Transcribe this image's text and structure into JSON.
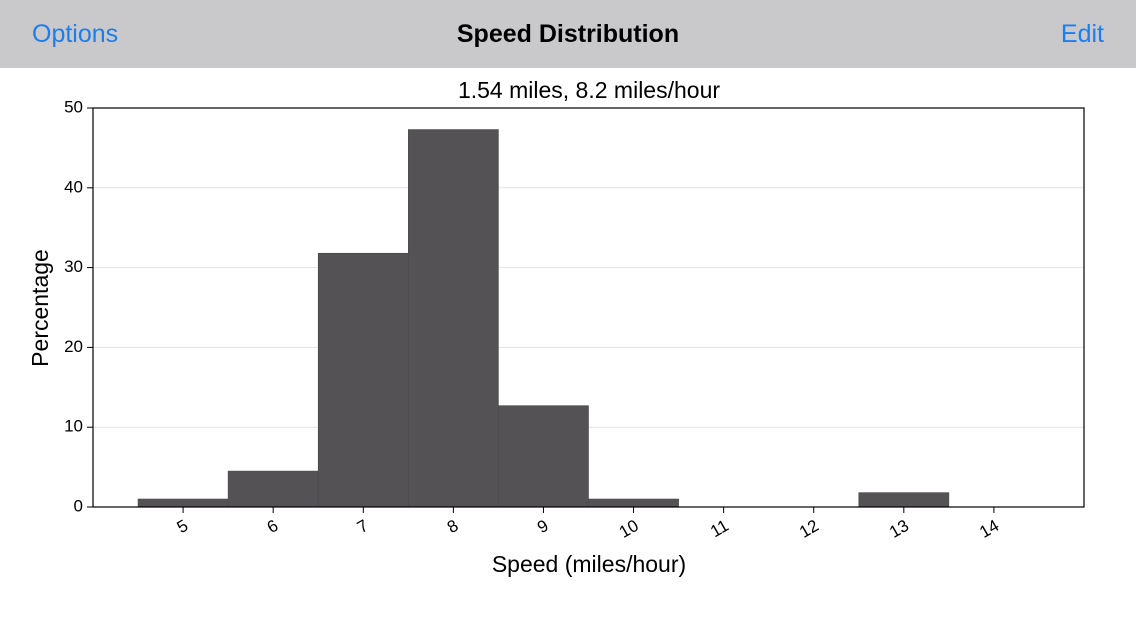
{
  "nav": {
    "title": "Speed Distribution",
    "left_button": "Options",
    "right_button": "Edit"
  },
  "chart_data": {
    "type": "histogram",
    "title": "1.54 miles, 8.2 miles/hour",
    "x_label": "Speed (miles/hour)",
    "y_label": "Percentage",
    "bins": [
      4.5,
      5.5,
      6.5,
      7.5,
      8.5,
      9.5,
      10.5,
      11.5,
      12.5,
      13.5
    ],
    "values": [
      1,
      4.5,
      31.8,
      47.3,
      12.7,
      1,
      0,
      0,
      1.8
    ],
    "color": "#545255",
    "xlim": [
      4,
      15
    ],
    "xticks": [
      5,
      6,
      7,
      8,
      9,
      10,
      11,
      12,
      13,
      14
    ],
    "ylim": [
      0,
      50
    ],
    "yticks": [
      0,
      10,
      20,
      30,
      40,
      50
    ],
    "grid": true
  }
}
